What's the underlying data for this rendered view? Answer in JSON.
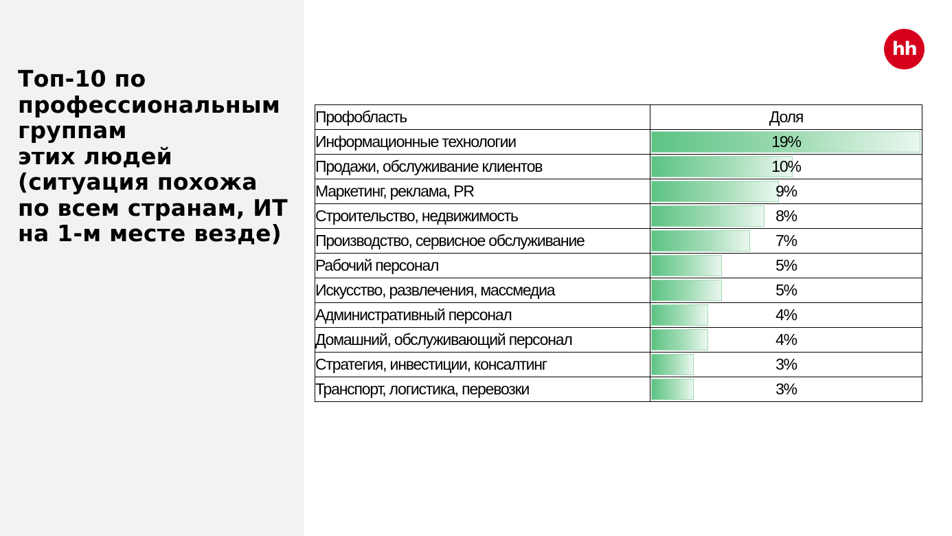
{
  "heading": {
    "lines": [
      "Топ-10 по",
      "профессиональным",
      "группам",
      "этих людей",
      "(ситуация похожа",
      "по всем странам, ИТ",
      "на 1-м месте везде)"
    ]
  },
  "logo": {
    "text": "hh",
    "color": "#d6001c"
  },
  "colors": {
    "bar_start": "#5cc383",
    "bar_end": "#eaf7ef"
  },
  "chart_data": {
    "type": "table",
    "columns": [
      "Профобласть",
      "Доля"
    ],
    "rows": [
      {
        "label": "Информационные технологии",
        "value": 19,
        "display": "19%"
      },
      {
        "label": "Продажи, обслуживание клиентов",
        "value": 10,
        "display": "10%"
      },
      {
        "label": "Маркетинг, реклама, PR",
        "value": 9,
        "display": "9%"
      },
      {
        "label": "Строительство, недвижимость",
        "value": 8,
        "display": "8%"
      },
      {
        "label": "Производство, сервисное обслуживание",
        "value": 7,
        "display": "7%"
      },
      {
        "label": "Рабочий персонал",
        "value": 5,
        "display": "5%"
      },
      {
        "label": "Искусство, развлечения, массмедиа",
        "value": 5,
        "display": "5%"
      },
      {
        "label": "Административный персонал",
        "value": 4,
        "display": "4%"
      },
      {
        "label": "Домашний, обслуживающий персонал",
        "value": 4,
        "display": "4%"
      },
      {
        "label": "Стратегия, инвестиции, консалтинг",
        "value": 3,
        "display": "3%"
      },
      {
        "label": "Транспорт, логистика, перевозки",
        "value": 3,
        "display": "3%"
      }
    ]
  }
}
